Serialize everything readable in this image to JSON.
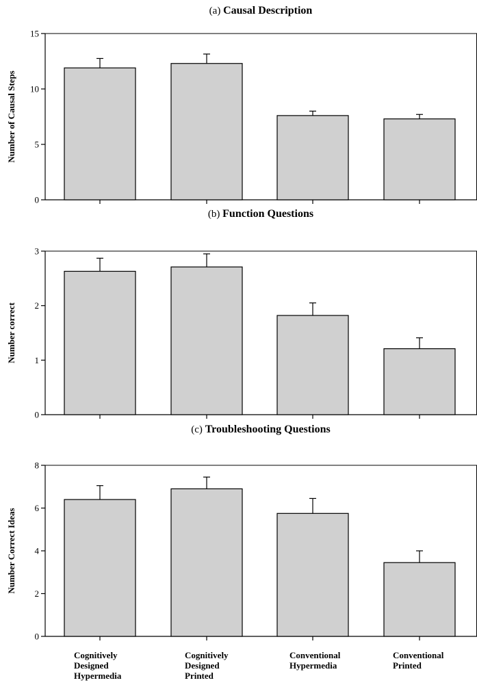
{
  "chart_data": [
    {
      "type": "bar",
      "title_prefix": "(a)",
      "title": "Causal Description",
      "xlabel": "",
      "ylabel": "Number of Causal Steps",
      "ylim": [
        0,
        15
      ],
      "yticks": [
        0,
        5,
        10,
        15
      ],
      "categories": [
        "Cognitively Designed Hypermedia",
        "Cognitively Designed Printed",
        "Conventional Hypermedia",
        "Conventional Printed"
      ],
      "values": [
        11.9,
        12.3,
        7.6,
        7.3
      ],
      "error_upper": [
        0.85,
        0.85,
        0.4,
        0.4
      ],
      "grid": false
    },
    {
      "type": "bar",
      "title_prefix": "(b)",
      "title": "Function Questions",
      "xlabel": "",
      "ylabel": "Number correct",
      "ylim": [
        0,
        3
      ],
      "yticks": [
        0,
        1,
        2,
        3
      ],
      "categories": [
        "Cognitively Designed Hypermedia",
        "Cognitively Designed Printed",
        "Conventional Hypermedia",
        "Conventional Printed"
      ],
      "values": [
        2.63,
        2.71,
        1.82,
        1.21
      ],
      "error_upper": [
        0.24,
        0.24,
        0.23,
        0.2
      ],
      "grid": false
    },
    {
      "type": "bar",
      "title_prefix": "(c)",
      "title": "Troubleshooting Questions",
      "xlabel": "",
      "ylabel": "Number Correct Ideas",
      "ylim": [
        0,
        8
      ],
      "yticks": [
        0,
        2,
        4,
        6,
        8
      ],
      "categories": [
        "Cognitively Designed Hypermedia",
        "Cognitively Designed Printed",
        "Conventional Hypermedia",
        "Conventional Printed"
      ],
      "values": [
        6.4,
        6.9,
        5.75,
        3.45
      ],
      "error_upper": [
        0.65,
        0.55,
        0.7,
        0.55
      ],
      "grid": false
    }
  ],
  "x_axis_labels": [
    [
      "Cognitively",
      "Designed",
      "Hypermedia"
    ],
    [
      "Cognitively",
      "Designed",
      "Printed"
    ],
    [
      "Conventional",
      "Hypermedia"
    ],
    [
      "Conventional",
      "Printed"
    ]
  ]
}
